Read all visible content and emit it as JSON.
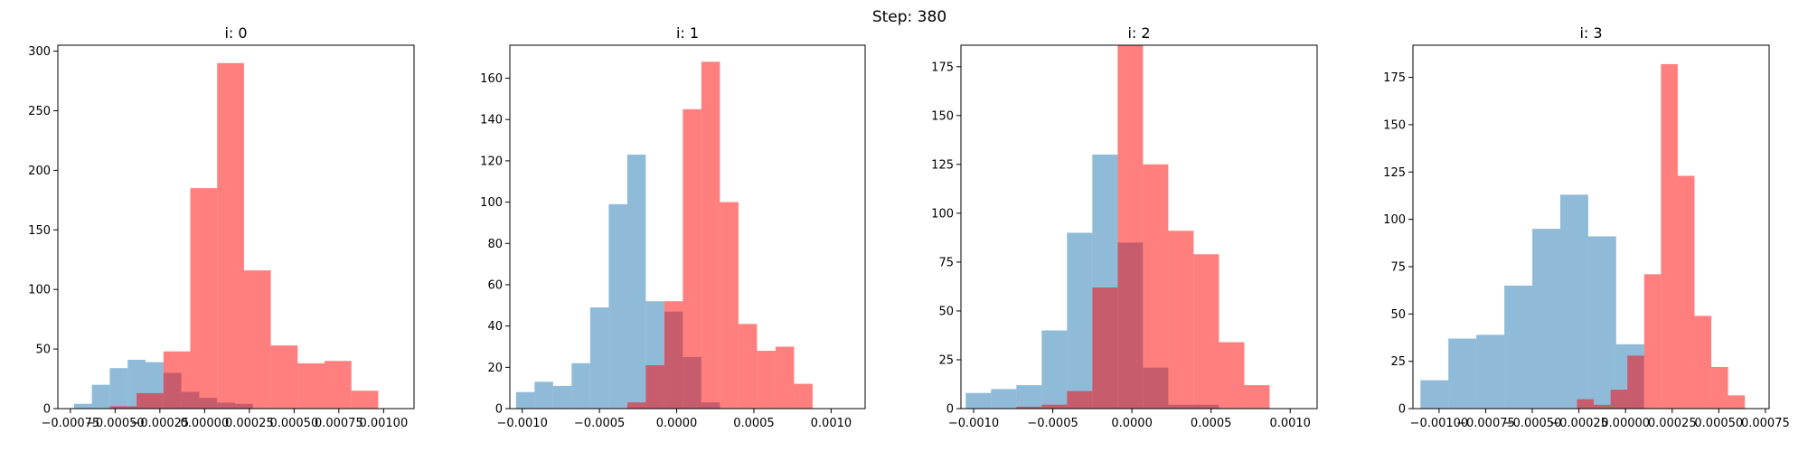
{
  "figure": {
    "title": "Step: 380"
  },
  "style": {
    "blue_color": "#1f77b4",
    "red_color": "#ff0000",
    "blue_alpha": 0.5,
    "red_alpha": 0.5
  },
  "chart_data": [
    {
      "type": "histogram",
      "title": "i: 0",
      "xlim": [
        -0.00082,
        0.00117
      ],
      "ylim": [
        0,
        305
      ],
      "xticks": [
        -0.00075,
        -0.0005,
        -0.00025,
        0.0,
        0.00025,
        0.0005,
        0.00075,
        0.001
      ],
      "xtick_labels": [
        "−0.00075",
        "−0.00050",
        "−0.00025",
        "0.00000",
        "0.00025",
        "0.00050",
        "0.00075",
        "0.00100"
      ],
      "yticks": [
        0,
        50,
        100,
        150,
        200,
        250,
        300
      ],
      "ytick_labels": [
        "0",
        "50",
        "100",
        "150",
        "200",
        "250",
        "300"
      ],
      "series": [
        {
          "color": "blue",
          "bin_edges": [
            -0.00073,
            -0.00063,
            -0.00053,
            -0.00043,
            -0.00033,
            -0.00023,
            -0.00013,
            -3e-05,
            7e-05,
            0.00017,
            0.00027
          ],
          "counts": [
            4,
            20,
            34,
            41,
            39,
            30,
            14,
            9,
            5,
            4
          ]
        },
        {
          "color": "red",
          "bin_edges": [
            -0.00053,
            -0.00038,
            -0.00023,
            -8e-05,
            7e-05,
            0.00022,
            0.00037,
            0.00052,
            0.00067,
            0.00082,
            0.00097,
            0.00112
          ],
          "counts": [
            2,
            13,
            48,
            185,
            290,
            116,
            53,
            38,
            40,
            15,
            0
          ]
        }
      ]
    },
    {
      "type": "histogram",
      "title": "i: 1",
      "xlim": [
        -0.00108,
        0.00122
      ],
      "ylim": [
        0,
        176
      ],
      "xticks": [
        -0.001,
        -0.0005,
        0.0,
        0.0005,
        0.001
      ],
      "xtick_labels": [
        "−0.0010",
        "−0.0005",
        "0.0000",
        "0.0005",
        "0.0010"
      ],
      "yticks": [
        0,
        20,
        40,
        60,
        80,
        100,
        120,
        140,
        160
      ],
      "ytick_labels": [
        "0",
        "20",
        "40",
        "60",
        "80",
        "100",
        "120",
        "140",
        "160"
      ],
      "series": [
        {
          "color": "blue",
          "bin_edges": [
            -0.00104,
            -0.00092,
            -0.0008,
            -0.00068,
            -0.00056,
            -0.00044,
            -0.00032,
            -0.0002,
            -8e-05,
            4e-05,
            0.00016,
            0.00028,
            0.0004
          ],
          "counts": [
            8,
            13,
            11,
            22,
            49,
            99,
            123,
            52,
            47,
            25,
            3,
            0
          ]
        },
        {
          "color": "red",
          "bin_edges": [
            -0.00032,
            -0.0002,
            -8e-05,
            4e-05,
            0.00016,
            0.00028,
            0.0004,
            0.00052,
            0.00064,
            0.00076,
            0.00088,
            0.001,
            0.00115
          ],
          "counts": [
            3,
            21,
            52,
            145,
            168,
            100,
            41,
            28,
            30,
            12,
            0,
            0
          ]
        }
      ]
    },
    {
      "type": "histogram",
      "title": "i: 2",
      "xlim": [
        -0.00108,
        0.00117
      ],
      "ylim": [
        0,
        186
      ],
      "xticks": [
        -0.001,
        -0.0005,
        0.0,
        0.0005,
        0.001
      ],
      "xtick_labels": [
        "−0.0010",
        "−0.0005",
        "0.0000",
        "0.0005",
        "0.0010"
      ],
      "yticks": [
        0,
        25,
        50,
        75,
        100,
        125,
        150,
        175
      ],
      "ytick_labels": [
        "0",
        "25",
        "50",
        "75",
        "100",
        "125",
        "150",
        "175"
      ],
      "series": [
        {
          "color": "blue",
          "bin_edges": [
            -0.00105,
            -0.00089,
            -0.00073,
            -0.00057,
            -0.00041,
            -0.00025,
            -9e-05,
            7e-05,
            0.00023,
            0.00039,
            0.00055,
            0.00071
          ],
          "counts": [
            8,
            10,
            12,
            40,
            90,
            130,
            85,
            21,
            2,
            2,
            0
          ]
        },
        {
          "color": "red",
          "bin_edges": [
            -0.00073,
            -0.00057,
            -0.00041,
            -0.00025,
            -9e-05,
            7e-05,
            0.00023,
            0.00039,
            0.00055,
            0.00071,
            0.00087,
            0.00103,
            0.00119
          ],
          "counts": [
            1,
            2,
            9,
            62,
            186,
            125,
            91,
            79,
            34,
            12,
            0,
            0
          ]
        }
      ]
    },
    {
      "type": "histogram",
      "title": "i: 3",
      "xlim": [
        -0.00114,
        0.00077
      ],
      "ylim": [
        0,
        192
      ],
      "xticks": [
        -0.001,
        -0.00075,
        -0.0005,
        -0.00025,
        0.0,
        0.00025,
        0.0005,
        0.00075
      ],
      "xtick_labels": [
        "−0.00100",
        "−0.00075",
        "−0.00050",
        "−0.00025",
        "0.00000",
        "0.00025",
        "0.00050",
        "0.00075"
      ],
      "yticks": [
        0,
        25,
        50,
        75,
        100,
        125,
        150,
        175
      ],
      "ytick_labels": [
        "0",
        "25",
        "50",
        "75",
        "100",
        "125",
        "150",
        "175"
      ],
      "series": [
        {
          "color": "blue",
          "bin_edges": [
            -0.0011,
            -0.00095,
            -0.0008,
            -0.00065,
            -0.0005,
            -0.00035,
            -0.0002,
            -5e-05,
            0.0001,
            0.00025
          ],
          "counts": [
            15,
            37,
            39,
            65,
            95,
            113,
            91,
            34,
            0
          ]
        },
        {
          "color": "red",
          "bin_edges": [
            -0.00035,
            -0.00026,
            -0.00017,
            -8e-05,
            1e-05,
            0.0001,
            0.00019,
            0.00028,
            0.00037,
            0.00046,
            0.00055,
            0.00064,
            0.00073
          ],
          "counts": [
            0,
            5,
            2,
            10,
            28,
            71,
            182,
            123,
            49,
            22,
            7,
            0
          ]
        }
      ]
    }
  ]
}
